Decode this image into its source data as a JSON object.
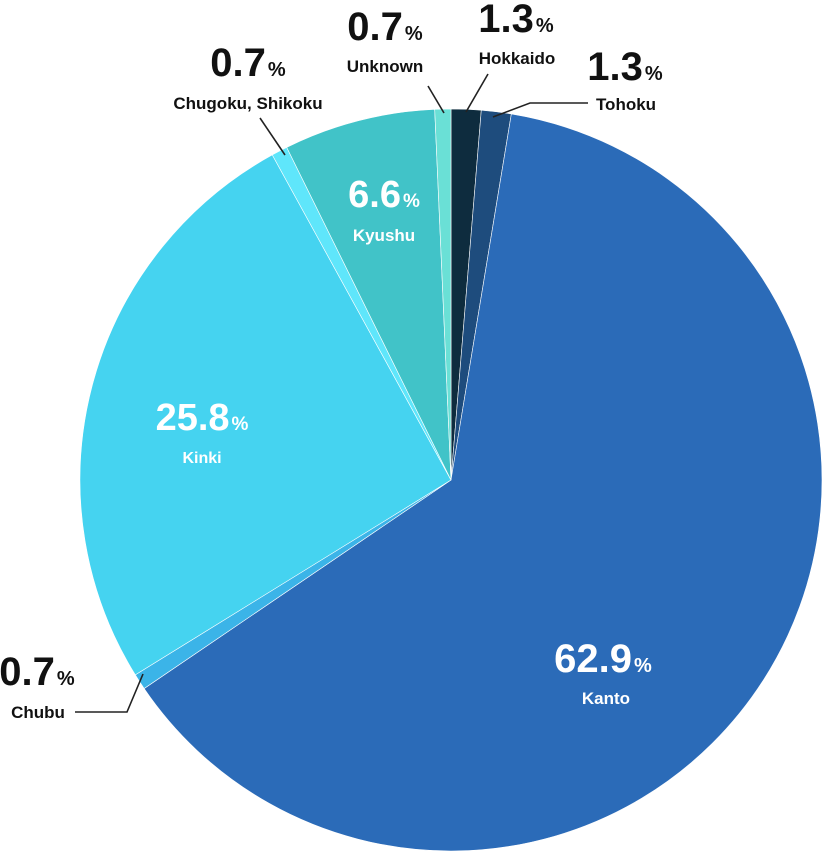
{
  "chart_data": {
    "type": "pie",
    "title": "",
    "unit": "%",
    "slices": [
      {
        "label": "Hokkaido",
        "value": 1.3,
        "color": "#0e2c3e",
        "label_position": "outside"
      },
      {
        "label": "Tohoku",
        "value": 1.3,
        "color": "#1e4c7d",
        "label_position": "outside"
      },
      {
        "label": "Kanto",
        "value": 62.9,
        "color": "#2b6bb8",
        "label_position": "inside"
      },
      {
        "label": "Chubu",
        "value": 0.7,
        "color": "#3bb4e8",
        "label_position": "outside"
      },
      {
        "label": "Kinki",
        "value": 25.8,
        "color": "#45d3f0",
        "label_position": "inside"
      },
      {
        "label": "Chugoku, Shikoku",
        "value": 0.7,
        "color": "#5fe6fb",
        "label_position": "outside"
      },
      {
        "label": "Kyushu",
        "value": 6.6,
        "color": "#41c3c8",
        "label_position": "inside"
      },
      {
        "label": "Unknown",
        "value": 0.7,
        "color": "#6ae0d6",
        "label_position": "outside"
      }
    ]
  }
}
